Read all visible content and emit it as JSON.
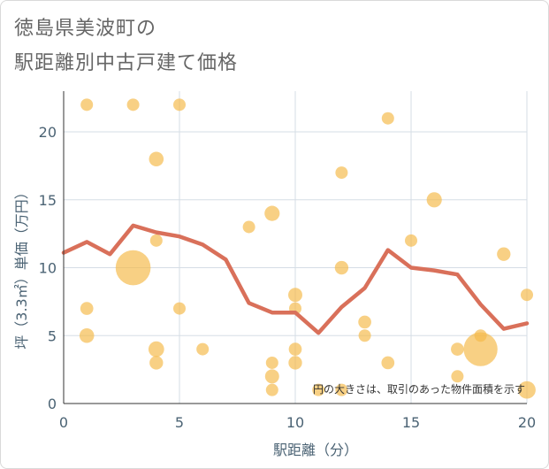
{
  "title": {
    "line1": "徳島県美波町の",
    "line2": "駅距離別中古戸建て価格"
  },
  "chart_data": {
    "type": "scatter",
    "xlabel": "駅距離（分）",
    "ylabel": "坪（3.3㎡）単価（万円）",
    "xlim": [
      0,
      20
    ],
    "ylim": [
      0,
      23
    ],
    "xticks": [
      "0",
      "5",
      "10",
      "15",
      "20"
    ],
    "yticks": [
      "0",
      "5",
      "10",
      "15",
      "20"
    ],
    "grid": true,
    "note": "円の大きさは、取引のあった物件面積を示す",
    "colors": {
      "bubble": "#f5b94a",
      "line": "#d9705a",
      "grid": "#d5dde5",
      "text": "#4b6374"
    },
    "bubbles": [
      {
        "x": 1,
        "y": 22,
        "size": 1
      },
      {
        "x": 3,
        "y": 22,
        "size": 1
      },
      {
        "x": 5,
        "y": 22,
        "size": 1
      },
      {
        "x": 14,
        "y": 21,
        "size": 1
      },
      {
        "x": 4,
        "y": 18,
        "size": 1.4
      },
      {
        "x": 12,
        "y": 17,
        "size": 1
      },
      {
        "x": 16,
        "y": 15,
        "size": 1.5
      },
      {
        "x": 9,
        "y": 14,
        "size": 1.5
      },
      {
        "x": 8,
        "y": 13,
        "size": 1
      },
      {
        "x": 4,
        "y": 12,
        "size": 1
      },
      {
        "x": 15,
        "y": 12,
        "size": 1
      },
      {
        "x": 19,
        "y": 11,
        "size": 1.2
      },
      {
        "x": 3,
        "y": 10,
        "size": 8
      },
      {
        "x": 12,
        "y": 10,
        "size": 1.2
      },
      {
        "x": 10,
        "y": 8,
        "size": 1.3
      },
      {
        "x": 20,
        "y": 8,
        "size": 1
      },
      {
        "x": 1,
        "y": 7,
        "size": 1.1
      },
      {
        "x": 5,
        "y": 7,
        "size": 1
      },
      {
        "x": 10,
        "y": 7,
        "size": 1
      },
      {
        "x": 13,
        "y": 6,
        "size": 1.1
      },
      {
        "x": 1,
        "y": 5,
        "size": 1.4
      },
      {
        "x": 13,
        "y": 5,
        "size": 1
      },
      {
        "x": 18,
        "y": 5,
        "size": 1
      },
      {
        "x": 4,
        "y": 4,
        "size": 1.6
      },
      {
        "x": 6,
        "y": 4,
        "size": 1
      },
      {
        "x": 10,
        "y": 4,
        "size": 1.1
      },
      {
        "x": 17,
        "y": 4,
        "size": 1.1
      },
      {
        "x": 18,
        "y": 4,
        "size": 7.5
      },
      {
        "x": 4,
        "y": 3,
        "size": 1.2
      },
      {
        "x": 9,
        "y": 3,
        "size": 1
      },
      {
        "x": 10,
        "y": 3,
        "size": 1.2
      },
      {
        "x": 14,
        "y": 3,
        "size": 1.1
      },
      {
        "x": 9,
        "y": 2,
        "size": 1.3
      },
      {
        "x": 17,
        "y": 2,
        "size": 1
      },
      {
        "x": 9,
        "y": 1,
        "size": 1
      },
      {
        "x": 11,
        "y": 1,
        "size": 1
      },
      {
        "x": 12,
        "y": 1,
        "size": 1
      },
      {
        "x": 20,
        "y": 1,
        "size": 2
      }
    ],
    "trend": [
      {
        "x": 0,
        "y": 11.1
      },
      {
        "x": 1,
        "y": 11.9
      },
      {
        "x": 2,
        "y": 11.0
      },
      {
        "x": 3,
        "y": 13.1
      },
      {
        "x": 4,
        "y": 12.6
      },
      {
        "x": 5,
        "y": 12.3
      },
      {
        "x": 6,
        "y": 11.7
      },
      {
        "x": 7,
        "y": 10.6
      },
      {
        "x": 8,
        "y": 7.4
      },
      {
        "x": 9,
        "y": 6.7
      },
      {
        "x": 10,
        "y": 6.7
      },
      {
        "x": 11,
        "y": 5.2
      },
      {
        "x": 12,
        "y": 7.1
      },
      {
        "x": 13,
        "y": 8.5
      },
      {
        "x": 14,
        "y": 11.3
      },
      {
        "x": 15,
        "y": 10.0
      },
      {
        "x": 16,
        "y": 9.8
      },
      {
        "x": 17,
        "y": 9.5
      },
      {
        "x": 18,
        "y": 7.3
      },
      {
        "x": 19,
        "y": 5.5
      },
      {
        "x": 20,
        "y": 5.9
      }
    ]
  }
}
